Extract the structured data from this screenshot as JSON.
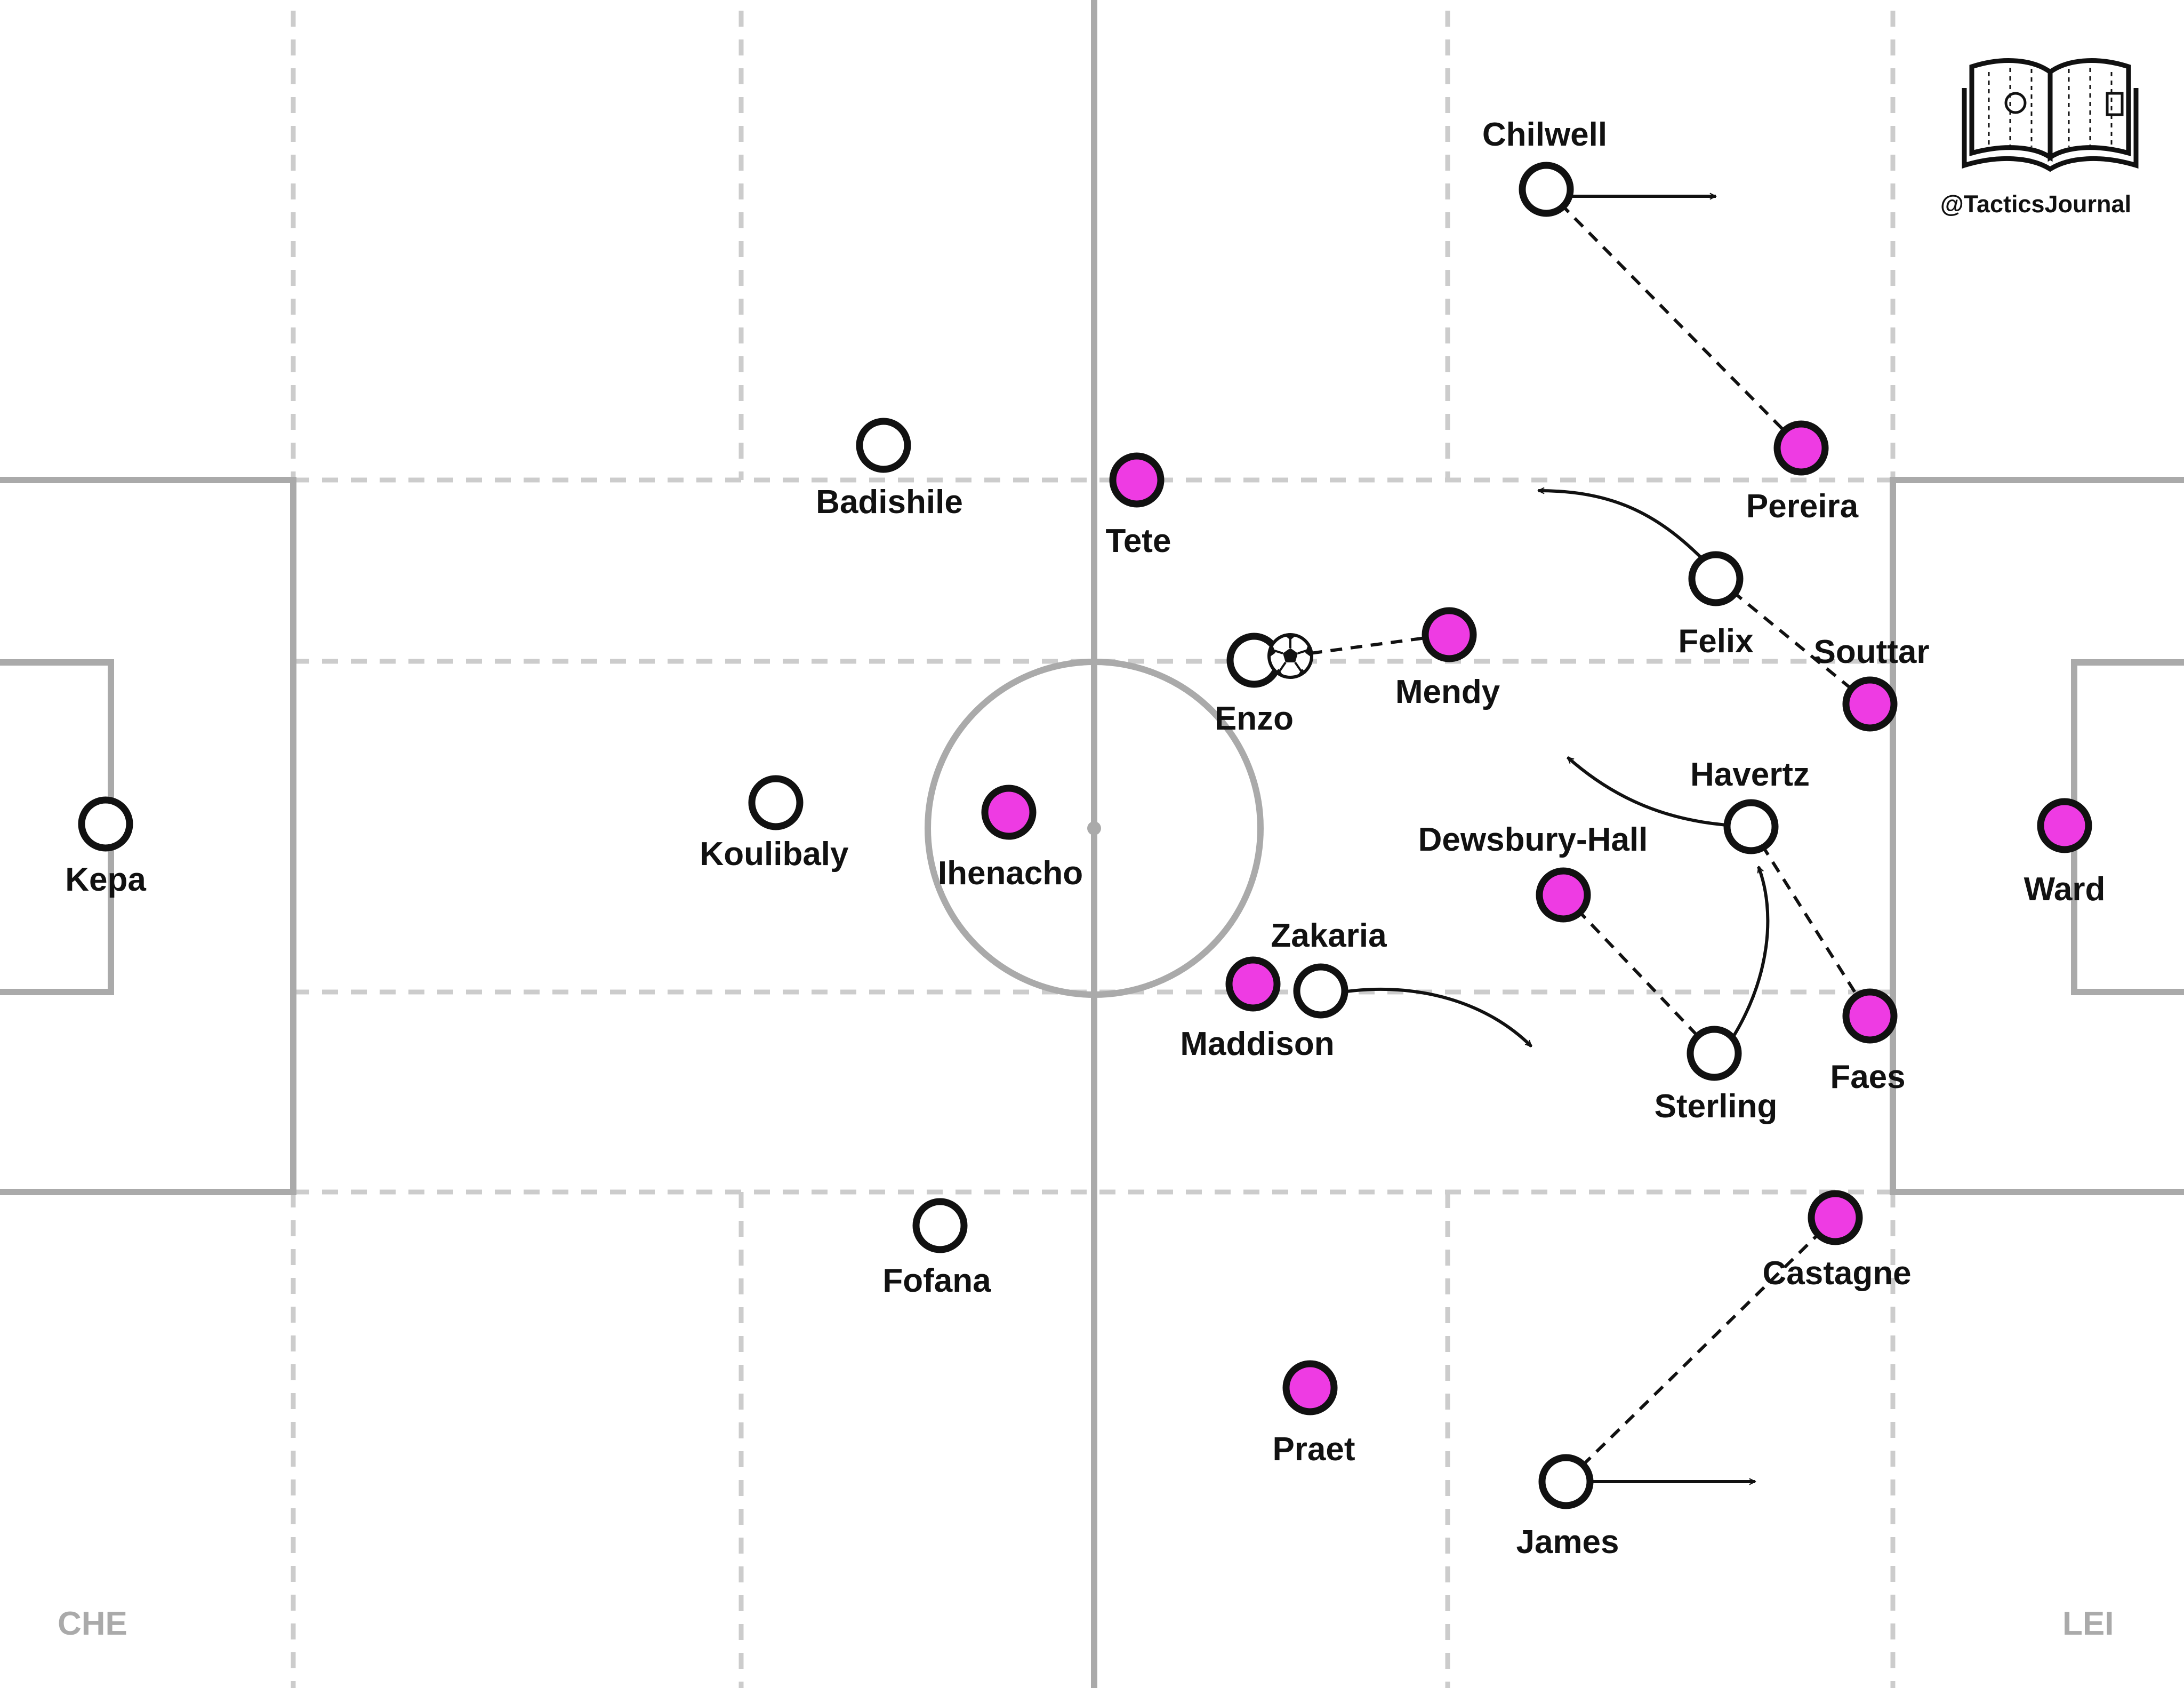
{
  "branding": {
    "handle": "@TacticsJournal",
    "icon": "book-pitch-icon"
  },
  "teams": {
    "home": {
      "code": "CHE",
      "color": "#ffffff"
    },
    "away": {
      "code": "LEI",
      "color": "#ee3be3"
    }
  },
  "players": {
    "kepa": "Kepa",
    "badishile": "Badishile",
    "koulibaly": "Koulibaly",
    "fofana": "Fofana",
    "chilwell": "Chilwell",
    "enzo": "Enzo",
    "zakaria": "Zakaria",
    "felix": "Felix",
    "havertz": "Havertz",
    "sterling": "Sterling",
    "james": "James",
    "ward": "Ward",
    "souttar": "Souttar",
    "faes": "Faes",
    "pereira": "Pereira",
    "castagne": "Castagne",
    "mendy": "Mendy",
    "dewsbury_hall": "Dewsbury-Hall",
    "maddison": "Maddison",
    "tete": "Tete",
    "ihenacho": "Ihenacho",
    "praet": "Praet"
  },
  "ball_holder": "Enzo"
}
